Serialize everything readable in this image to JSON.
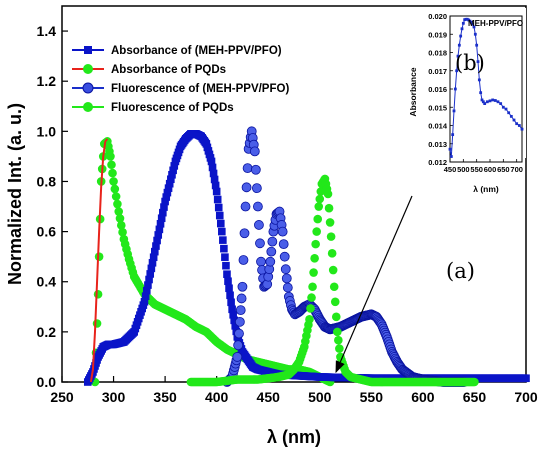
{
  "chart_data": [
    {
      "panel": "(a)",
      "type": "line",
      "xlabel": "λ (nm)",
      "ylabel": "Normalized Int. (a. u.)",
      "xlim": [
        250,
        700
      ],
      "ylim": [
        0,
        1.5
      ],
      "xticks": [
        250,
        300,
        350,
        400,
        450,
        500,
        550,
        600,
        650,
        700
      ],
      "yticks": [
        0.0,
        0.2,
        0.4,
        0.6,
        0.8,
        1.0,
        1.2,
        1.4
      ],
      "legend_position": "top-left",
      "series": [
        {
          "name": "Absorbance of (MEH-PPV/PFO)",
          "color": "#0a14c8",
          "marker": "square",
          "x": [
            275,
            280,
            285,
            290,
            295,
            300,
            310,
            320,
            330,
            340,
            350,
            360,
            365,
            370,
            375,
            380,
            385,
            390,
            395,
            400,
            405,
            410,
            415,
            420,
            425,
            430,
            435,
            440,
            450,
            460,
            480,
            500,
            550,
            600,
            650,
            700
          ],
          "y": [
            0.0,
            0.04,
            0.1,
            0.14,
            0.15,
            0.15,
            0.16,
            0.2,
            0.32,
            0.52,
            0.72,
            0.88,
            0.94,
            0.97,
            0.99,
            0.99,
            0.98,
            0.95,
            0.88,
            0.76,
            0.6,
            0.43,
            0.29,
            0.18,
            0.12,
            0.09,
            0.06,
            0.05,
            0.04,
            0.03,
            0.025,
            0.02,
            0.015,
            0.015,
            0.015,
            0.015
          ]
        },
        {
          "name": "Absorbance of PQDs",
          "color": "#e8231b",
          "marker": "none",
          "x": [
            278,
            280,
            282,
            284,
            286,
            288,
            290,
            292,
            294
          ],
          "y": [
            0.0,
            0.05,
            0.2,
            0.4,
            0.6,
            0.78,
            0.9,
            0.96,
            0.97
          ]
        },
        {
          "name": "Fluorescence of (MEH-PPV/PFO)",
          "color": "#1a2fc9",
          "marker": "circle",
          "x": [
            410,
            415,
            420,
            425,
            428,
            431,
            434,
            437,
            440,
            443,
            446,
            449,
            452,
            455,
            458,
            461,
            464,
            467,
            470,
            473,
            476,
            480,
            485,
            490,
            495,
            500,
            505,
            510,
            520,
            530,
            540,
            550,
            555,
            560,
            565,
            570,
            575,
            580,
            590,
            600,
            610,
            620,
            630,
            640
          ],
          "y": [
            0.0,
            0.02,
            0.1,
            0.38,
            0.7,
            0.93,
            1.0,
            0.92,
            0.7,
            0.48,
            0.38,
            0.39,
            0.48,
            0.6,
            0.67,
            0.68,
            0.6,
            0.45,
            0.34,
            0.29,
            0.27,
            0.28,
            0.3,
            0.31,
            0.29,
            0.25,
            0.22,
            0.21,
            0.22,
            0.24,
            0.26,
            0.27,
            0.26,
            0.23,
            0.18,
            0.12,
            0.08,
            0.05,
            0.02,
            0.01,
            0.005,
            0.0,
            0.0,
            0.0
          ]
        },
        {
          "name": "Fluorescence of PQDs",
          "color": "#22e81a",
          "marker": "circle",
          "x": [
            375,
            400,
            420,
            440,
            460,
            470,
            475,
            480,
            485,
            490,
            493,
            496,
            499,
            502,
            505,
            508,
            511,
            514,
            517,
            520,
            525,
            530,
            540,
            550,
            575,
            600,
            625,
            650
          ],
          "y": [
            0.0,
            0.0,
            0.01,
            0.01,
            0.02,
            0.03,
            0.05,
            0.08,
            0.14,
            0.25,
            0.38,
            0.55,
            0.7,
            0.79,
            0.81,
            0.75,
            0.58,
            0.38,
            0.2,
            0.1,
            0.04,
            0.02,
            0.01,
            0.0,
            0.0,
            0.0,
            0.0,
            0.0
          ]
        }
      ],
      "extra_series": {
        "pqd_full_trace": {
          "x": [
            282,
            285,
            288,
            291,
            294,
            297,
            300,
            305,
            310,
            315,
            320,
            330,
            340,
            350,
            360,
            370,
            380,
            390,
            400,
            410,
            420,
            430,
            440,
            450,
            460,
            470,
            480,
            490,
            500,
            505,
            510
          ],
          "y": [
            0.0,
            0.35,
            0.8,
            0.95,
            0.96,
            0.9,
            0.8,
            0.68,
            0.57,
            0.49,
            0.42,
            0.35,
            0.31,
            0.29,
            0.27,
            0.25,
            0.22,
            0.2,
            0.16,
            0.13,
            0.11,
            0.09,
            0.08,
            0.07,
            0.06,
            0.05,
            0.05,
            0.04,
            0.02,
            0.01,
            0.0
          ]
        }
      }
    },
    {
      "panel": "(b)",
      "type": "line",
      "title": "MEH-PPV/PFO",
      "xlabel": "λ (nm)",
      "ylabel": "Absorbance",
      "xlim": [
        450,
        720
      ],
      "ylim": [
        0.012,
        0.02
      ],
      "xticks": [
        450,
        500,
        550,
        600,
        650,
        700
      ],
      "yticks": [
        0.012,
        0.013,
        0.014,
        0.015,
        0.016,
        0.017,
        0.018,
        0.019,
        0.02
      ],
      "series": [
        {
          "name": "MEH-PPV/PFO",
          "color": "#1a2fc9",
          "marker": "square",
          "x": [
            450,
            455,
            460,
            465,
            470,
            475,
            480,
            485,
            490,
            495,
            500,
            505,
            510,
            515,
            520,
            525,
            530,
            535,
            540,
            545,
            550,
            555,
            560,
            565,
            570,
            575,
            580,
            590,
            600,
            610,
            620,
            630,
            640,
            650,
            660,
            670,
            680,
            690,
            700,
            710,
            720
          ],
          "y": [
            0.0127,
            0.0123,
            0.0135,
            0.0148,
            0.016,
            0.017,
            0.0178,
            0.0184,
            0.0189,
            0.0193,
            0.0196,
            0.0198,
            0.01982,
            0.01982,
            0.01978,
            0.01972,
            0.01965,
            0.01955,
            0.0194,
            0.019,
            0.0184,
            0.0175,
            0.0165,
            0.0158,
            0.0154,
            0.0153,
            0.0152,
            0.0153,
            0.01535,
            0.0154,
            0.01537,
            0.0153,
            0.0152,
            0.015,
            0.0149,
            0.0147,
            0.0145,
            0.0143,
            0.0141,
            0.014,
            0.0138
          ]
        }
      ]
    }
  ]
}
